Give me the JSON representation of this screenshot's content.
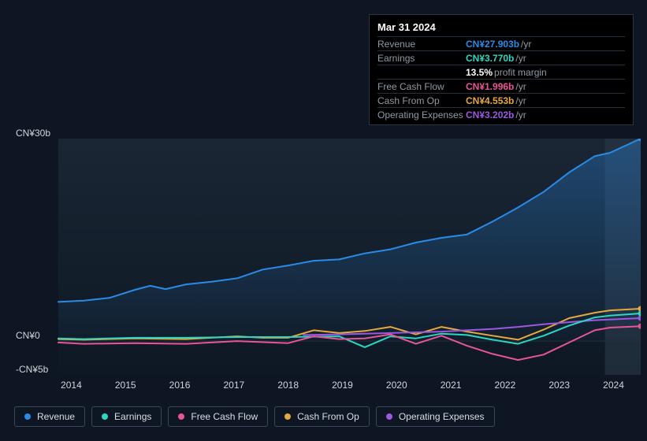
{
  "colors": {
    "background": "#0d1622",
    "plot_bg_top": "#1a2634",
    "plot_bg_bottom": "#0e1824",
    "forecast_band": "#2a3847",
    "grid": "#222f3c",
    "text": "#cfd6dc",
    "text_muted": "#8e9aa6",
    "revenue": "#2a8be6",
    "earnings": "#2dd6c1",
    "fcf": "#e85597",
    "cfo": "#e5a93e",
    "opex": "#9a59e0"
  },
  "tooltip": {
    "date": "Mar 31 2024",
    "rows": [
      {
        "label": "Revenue",
        "value": "CN¥27.903b",
        "unit": "/yr",
        "colorKey": "revenue"
      },
      {
        "label": "Earnings",
        "value": "CN¥3.770b",
        "unit": "/yr",
        "colorKey": "earnings"
      },
      {
        "label": "",
        "value": "13.5%",
        "unit": "profit margin",
        "indent": true
      },
      {
        "label": "Free Cash Flow",
        "value": "CN¥1.996b",
        "unit": "/yr",
        "colorKey": "fcf"
      },
      {
        "label": "Cash From Op",
        "value": "CN¥4.553b",
        "unit": "/yr",
        "colorKey": "cfo"
      },
      {
        "label": "Operating Expenses",
        "value": "CN¥3.202b",
        "unit": "/yr",
        "colorKey": "opex"
      }
    ]
  },
  "axes": {
    "yTicks": [
      {
        "label": "CN¥30b",
        "value": 30
      },
      {
        "label": "CN¥0",
        "value": 0
      },
      {
        "label": "-CN¥5b",
        "value": -5
      }
    ],
    "xTicks": [
      "2014",
      "2015",
      "2016",
      "2017",
      "2018",
      "2019",
      "2020",
      "2021",
      "2022",
      "2023",
      "2024"
    ],
    "yMin": -5,
    "yMax": 30,
    "xMin": 2013.5,
    "xMax": 2024.9,
    "forecastStart": 2024.2
  },
  "series": {
    "revenue": {
      "label": "Revenue",
      "colorKey": "revenue",
      "area": true,
      "points": [
        [
          2013.5,
          5.8
        ],
        [
          2014,
          6.0
        ],
        [
          2014.5,
          6.4
        ],
        [
          2015,
          7.6
        ],
        [
          2015.3,
          8.2
        ],
        [
          2015.6,
          7.7
        ],
        [
          2016,
          8.4
        ],
        [
          2016.5,
          8.8
        ],
        [
          2017,
          9.3
        ],
        [
          2017.5,
          10.6
        ],
        [
          2018,
          11.2
        ],
        [
          2018.5,
          11.9
        ],
        [
          2019,
          12.1
        ],
        [
          2019.5,
          13.0
        ],
        [
          2020,
          13.6
        ],
        [
          2020.5,
          14.6
        ],
        [
          2021,
          15.3
        ],
        [
          2021.5,
          15.8
        ],
        [
          2022,
          17.7
        ],
        [
          2022.5,
          19.8
        ],
        [
          2023,
          22.1
        ],
        [
          2023.5,
          25.0
        ],
        [
          2024,
          27.4
        ],
        [
          2024.3,
          27.9
        ],
        [
          2024.9,
          30.0
        ]
      ]
    },
    "earnings": {
      "label": "Earnings",
      "colorKey": "earnings",
      "points": [
        [
          2013.5,
          0.4
        ],
        [
          2014,
          0.3
        ],
        [
          2015,
          0.5
        ],
        [
          2016,
          0.5
        ],
        [
          2017,
          0.6
        ],
        [
          2018,
          0.6
        ],
        [
          2019,
          0.7
        ],
        [
          2019.5,
          -0.9
        ],
        [
          2020,
          0.7
        ],
        [
          2020.5,
          0.4
        ],
        [
          2021,
          1.1
        ],
        [
          2021.5,
          0.9
        ],
        [
          2022,
          0.2
        ],
        [
          2022.5,
          -0.4
        ],
        [
          2023,
          0.8
        ],
        [
          2023.5,
          2.3
        ],
        [
          2024,
          3.5
        ],
        [
          2024.3,
          3.77
        ],
        [
          2024.9,
          4.1
        ]
      ]
    },
    "fcf": {
      "label": "Free Cash Flow",
      "colorKey": "fcf",
      "points": [
        [
          2013.5,
          -0.2
        ],
        [
          2014,
          -0.4
        ],
        [
          2015,
          -0.3
        ],
        [
          2016,
          -0.4
        ],
        [
          2017,
          0.0
        ],
        [
          2018,
          -0.3
        ],
        [
          2018.5,
          0.7
        ],
        [
          2019,
          0.3
        ],
        [
          2019.5,
          0.4
        ],
        [
          2020,
          1.0
        ],
        [
          2020.5,
          -0.4
        ],
        [
          2021,
          0.8
        ],
        [
          2021.5,
          -0.7
        ],
        [
          2022,
          -1.9
        ],
        [
          2022.5,
          -2.8
        ],
        [
          2023,
          -2.0
        ],
        [
          2023.5,
          -0.2
        ],
        [
          2024,
          1.6
        ],
        [
          2024.3,
          2.0
        ],
        [
          2024.9,
          2.2
        ]
      ]
    },
    "cfo": {
      "label": "Cash From Op",
      "colorKey": "cfo",
      "points": [
        [
          2013.5,
          0.3
        ],
        [
          2014,
          0.2
        ],
        [
          2015,
          0.4
        ],
        [
          2016,
          0.3
        ],
        [
          2017,
          0.7
        ],
        [
          2017.5,
          0.5
        ],
        [
          2018,
          0.5
        ],
        [
          2018.5,
          1.6
        ],
        [
          2019,
          1.2
        ],
        [
          2019.5,
          1.5
        ],
        [
          2020,
          2.1
        ],
        [
          2020.5,
          1.0
        ],
        [
          2021,
          2.1
        ],
        [
          2021.5,
          1.4
        ],
        [
          2022,
          0.8
        ],
        [
          2022.5,
          0.2
        ],
        [
          2023,
          1.7
        ],
        [
          2023.5,
          3.4
        ],
        [
          2024,
          4.2
        ],
        [
          2024.3,
          4.55
        ],
        [
          2024.9,
          4.8
        ]
      ]
    },
    "opex": {
      "label": "Operating Expenses",
      "colorKey": "opex",
      "points": [
        [
          2018.3,
          0.9
        ],
        [
          2019,
          1.0
        ],
        [
          2019.5,
          1.1
        ],
        [
          2020,
          1.2
        ],
        [
          2020.5,
          1.3
        ],
        [
          2021,
          1.4
        ],
        [
          2021.5,
          1.6
        ],
        [
          2022,
          1.8
        ],
        [
          2022.5,
          2.1
        ],
        [
          2023,
          2.5
        ],
        [
          2023.5,
          2.8
        ],
        [
          2024,
          3.1
        ],
        [
          2024.3,
          3.2
        ],
        [
          2024.9,
          3.4
        ]
      ]
    }
  },
  "legend": [
    {
      "key": "revenue"
    },
    {
      "key": "earnings"
    },
    {
      "key": "fcf"
    },
    {
      "key": "cfo"
    },
    {
      "key": "opex"
    }
  ]
}
